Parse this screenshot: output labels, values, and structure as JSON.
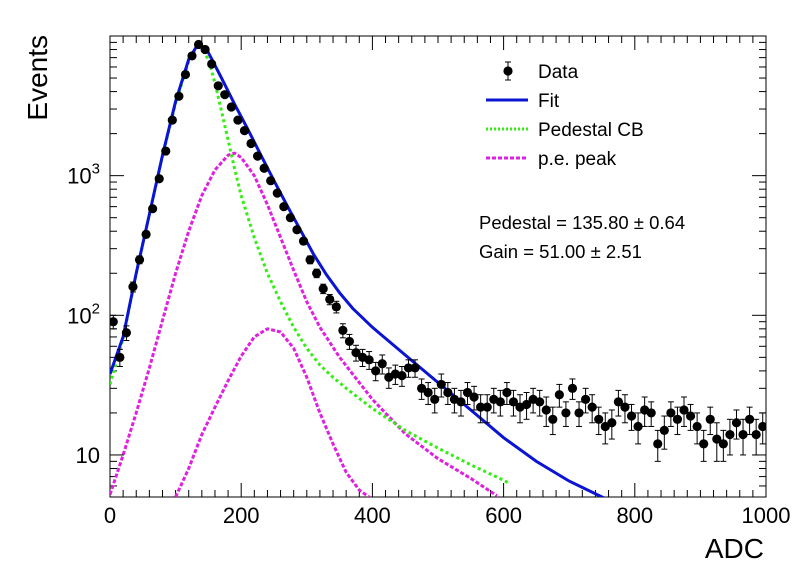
{
  "chart_data": {
    "type": "scatter",
    "xlabel": "ADC",
    "ylabel": "Events",
    "xlim": [
      0,
      1000
    ],
    "ylim": [
      5,
      10000
    ],
    "yscale": "log",
    "x_ticks": [
      {
        "value": 0,
        "label": "0"
      },
      {
        "value": 200,
        "label": "200"
      },
      {
        "value": 400,
        "label": "400"
      },
      {
        "value": 600,
        "label": "600"
      },
      {
        "value": 800,
        "label": "800"
      },
      {
        "value": 1000,
        "label": "1000"
      }
    ],
    "y_ticks": [
      {
        "value": 10,
        "base": "10",
        "exp": ""
      },
      {
        "value": 100,
        "base": "10",
        "exp": "2"
      },
      {
        "value": 1000,
        "base": "10",
        "exp": "3"
      }
    ],
    "legend": {
      "placement": "top-right",
      "entries": [
        {
          "label": "Data",
          "style": "marker",
          "color": "#000000"
        },
        {
          "label": "Fit",
          "style": "solid",
          "color": "#0a14d2"
        },
        {
          "label": "Pedestal CB",
          "style": "dotted",
          "color": "#33ee11"
        },
        {
          "label": "p.e. peak",
          "style": "dashed",
          "color": "#e020e0"
        }
      ]
    },
    "annotations": [
      {
        "text": "Pedestal = 135.80 ± 0.64"
      },
      {
        "text": "Gain = 51.00 ± 2.51"
      }
    ],
    "series": [
      {
        "name": "Data",
        "type": "scatter",
        "color": "#000000",
        "x": [
          5,
          15,
          25,
          35,
          45,
          55,
          65,
          75,
          85,
          95,
          105,
          115,
          125,
          135,
          145,
          155,
          165,
          175,
          185,
          195,
          205,
          215,
          225,
          235,
          245,
          255,
          265,
          275,
          285,
          295,
          305,
          315,
          325,
          335,
          345,
          355,
          365,
          375,
          385,
          395,
          405,
          415,
          425,
          435,
          445,
          455,
          465,
          475,
          485,
          495,
          505,
          515,
          525,
          535,
          545,
          555,
          565,
          575,
          585,
          595,
          605,
          615,
          625,
          635,
          645,
          655,
          665,
          675,
          685,
          695,
          705,
          715,
          725,
          735,
          745,
          755,
          765,
          775,
          785,
          795,
          805,
          815,
          825,
          835,
          845,
          855,
          865,
          875,
          885,
          895,
          905,
          915,
          925,
          935,
          945,
          955,
          965,
          975,
          985,
          995
        ],
        "y": [
          90,
          50,
          75,
          160,
          250,
          380,
          580,
          950,
          1500,
          2500,
          3700,
          5300,
          7200,
          8700,
          8000,
          6300,
          4400,
          3800,
          3100,
          2500,
          2100,
          1700,
          1380,
          1130,
          920,
          750,
          600,
          500,
          410,
          340,
          250,
          200,
          155,
          130,
          115,
          78,
          65,
          54,
          50,
          48,
          40,
          45,
          36,
          38,
          37,
          42,
          42,
          30,
          28,
          25,
          32,
          28,
          25,
          24,
          28,
          26,
          22,
          22,
          25,
          24,
          28,
          24,
          22,
          23,
          25,
          24,
          21,
          18,
          27,
          20,
          30,
          20,
          25,
          22,
          18,
          16,
          17,
          24,
          22,
          19,
          16,
          21,
          20,
          12,
          15,
          20,
          18,
          21,
          19,
          16,
          12,
          18,
          13,
          12,
          14,
          17,
          14,
          18,
          14,
          16
        ],
        "err": [
          10,
          7,
          9,
          13,
          16,
          20,
          24,
          31,
          39,
          50,
          61,
          73,
          85,
          93,
          89,
          79,
          66,
          62,
          56,
          50,
          46,
          41,
          37,
          34,
          30,
          27,
          24,
          22,
          20,
          18,
          16,
          14,
          12,
          11,
          11,
          9,
          8,
          7,
          7,
          7,
          6,
          7,
          6,
          6,
          6,
          6,
          6,
          5,
          5,
          5,
          6,
          5,
          5,
          5,
          5,
          5,
          5,
          5,
          5,
          5,
          5,
          5,
          5,
          5,
          5,
          5,
          5,
          4,
          5,
          4,
          5,
          4,
          5,
          5,
          4,
          4,
          4,
          5,
          5,
          4,
          4,
          5,
          4,
          3,
          4,
          4,
          4,
          5,
          4,
          4,
          3,
          4,
          4,
          3,
          4,
          4,
          4,
          4,
          4,
          4
        ]
      },
      {
        "name": "Fit",
        "type": "line",
        "color": "#0a14d2",
        "x": [
          0,
          20,
          40,
          60,
          80,
          100,
          120,
          135,
          150,
          170,
          190,
          210,
          230,
          250,
          270,
          290,
          310,
          330,
          350,
          370,
          400,
          450,
          500,
          550,
          600,
          650,
          700,
          750,
          770
        ],
        "y": [
          38,
          70,
          200,
          530,
          1400,
          3400,
          6800,
          8900,
          7600,
          5000,
          3250,
          2150,
          1400,
          920,
          610,
          410,
          275,
          195,
          145,
          112,
          82,
          52,
          33,
          21,
          13.3,
          9,
          6.5,
          5,
          4.6
        ]
      },
      {
        "name": "Pedestal CB",
        "type": "line",
        "color": "#33ee11",
        "x": [
          0,
          20,
          40,
          60,
          80,
          100,
          120,
          135,
          150,
          160,
          170,
          180,
          190,
          200,
          220,
          240,
          260,
          280,
          300,
          320,
          340,
          360,
          400,
          450,
          500,
          550,
          600,
          610
        ],
        "y": [
          32,
          68,
          200,
          530,
          1380,
          3300,
          6600,
          8700,
          6800,
          4600,
          2900,
          1800,
          1120,
          720,
          360,
          200,
          125,
          82,
          58,
          44,
          36,
          30,
          21.5,
          15,
          11.2,
          8.5,
          6.6,
          6.2
        ]
      },
      {
        "name": "p.e. peak (1)",
        "type": "line",
        "color": "#e020e0",
        "x": [
          0,
          20,
          40,
          60,
          80,
          100,
          120,
          140,
          160,
          180,
          190,
          200,
          220,
          240,
          260,
          280,
          300,
          320,
          350,
          400,
          450,
          500,
          550,
          590
        ],
        "y": [
          5.2,
          10,
          20,
          42,
          92,
          200,
          400,
          720,
          1100,
          1400,
          1450,
          1350,
          1000,
          620,
          360,
          210,
          125,
          82,
          50,
          25,
          14.2,
          9.4,
          6.8,
          5.1
        ]
      },
      {
        "name": "p.e. peak (2)",
        "type": "line",
        "color": "#e020e0",
        "x": [
          100,
          120,
          140,
          160,
          180,
          200,
          220,
          240,
          260,
          280,
          300,
          320,
          340,
          360,
          380,
          395
        ],
        "y": [
          5,
          8,
          14,
          22,
          34,
          51,
          70,
          80,
          76,
          58,
          36,
          20,
          12,
          7.5,
          5.6,
          5
        ]
      }
    ]
  }
}
